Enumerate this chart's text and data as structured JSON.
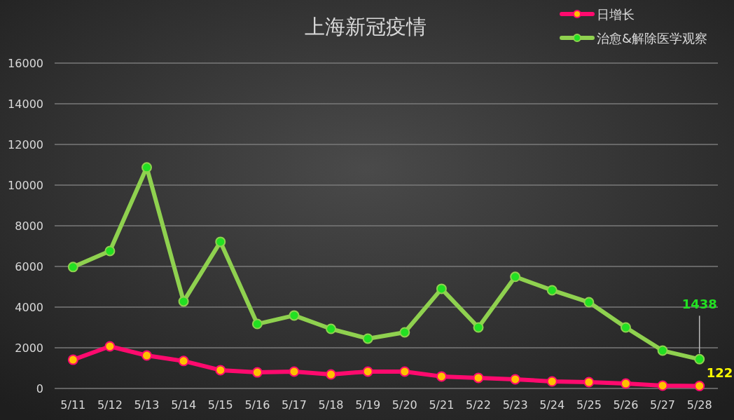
{
  "chart_data": {
    "type": "line",
    "title": "上海新冠疫情",
    "categories": [
      "5/11",
      "5/12",
      "5/13",
      "5/14",
      "5/15",
      "5/16",
      "5/17",
      "5/18",
      "5/19",
      "5/20",
      "5/21",
      "5/22",
      "5/23",
      "5/24",
      "5/25",
      "5/26",
      "5/27",
      "5/28"
    ],
    "series": [
      {
        "name": "日增长",
        "color": "#ff0a6e",
        "colors": [
          "#ffc000",
          "#ffc000",
          "#ffc000",
          "#ffc000",
          "#ffc000",
          "#ffc000",
          "#ffc000",
          "#ffc000",
          "#ffc000",
          "#ffc000",
          "#ffc000",
          "#ffc000",
          "#ffc000",
          "#ffc000",
          "#ffc000",
          "#ffc000",
          "#ffc000",
          "#ffc000"
        ],
        "values": [
          1410,
          2070,
          1620,
          1350,
          900,
          790,
          830,
          690,
          830,
          830,
          590,
          520,
          450,
          345,
          310,
          240,
          140,
          122
        ]
      },
      {
        "name": "治愈&解除医学观察",
        "color": "#8fd14f",
        "colors": [
          "#22e022",
          "#22e022",
          "#22e022",
          "#22e022",
          "#22e022",
          "#22e022",
          "#22e022",
          "#22e022",
          "#22e022",
          "#22e022",
          "#22e022",
          "#22e022",
          "#22e022",
          "#22e022",
          "#22e022",
          "#22e022",
          "#22e022",
          "#22e022"
        ],
        "values": [
          5970,
          6760,
          10870,
          4280,
          7210,
          3170,
          3590,
          2930,
          2450,
          2760,
          4900,
          3000,
          5490,
          4830,
          4240,
          3000,
          1860,
          1438
        ]
      }
    ],
    "ylim": [
      0,
      16000
    ],
    "yticks": [
      0,
      2000,
      4000,
      6000,
      8000,
      10000,
      12000,
      14000,
      16000
    ],
    "grid": "y",
    "legend": "top right",
    "marker": "circle",
    "line_style": "solid",
    "annotations": [
      {
        "text": "122",
        "x": "5/28",
        "y": 122
      },
      {
        "text": "1438",
        "x": "5/28",
        "y": 1438
      }
    ]
  }
}
